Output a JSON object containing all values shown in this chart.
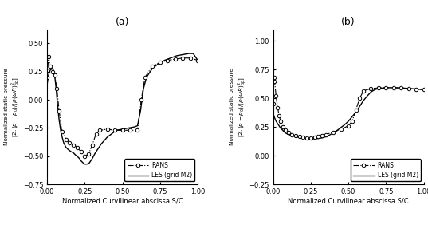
{
  "panel_a_label": "(a)",
  "panel_b_label": "(b)",
  "xlabel": "Normalized Curvilinear abscissa S/C",
  "legend_rans": "RANS",
  "legend_les": "LES (grid M2)",
  "panel_a": {
    "xlim": [
      0.0,
      1.0
    ],
    "ylim": [
      -0.75,
      0.625
    ],
    "yticks": [
      -0.75,
      -0.5,
      -0.25,
      0.0,
      0.25,
      0.5
    ],
    "xticks": [
      0.0,
      0.25,
      0.5,
      0.75,
      1.0
    ],
    "rans_x": [
      0.0,
      0.01,
      0.02,
      0.035,
      0.05,
      0.065,
      0.08,
      0.1,
      0.125,
      0.15,
      0.175,
      0.2,
      0.225,
      0.25,
      0.275,
      0.3,
      0.325,
      0.35,
      0.4,
      0.45,
      0.5,
      0.55,
      0.6,
      0.625,
      0.65,
      0.7,
      0.75,
      0.8,
      0.85,
      0.9,
      0.95,
      1.0
    ],
    "rans_y": [
      0.2,
      0.38,
      0.3,
      0.25,
      0.22,
      0.1,
      -0.1,
      -0.28,
      -0.35,
      -0.38,
      -0.4,
      -0.42,
      -0.46,
      -0.5,
      -0.48,
      -0.4,
      -0.3,
      -0.27,
      -0.26,
      -0.27,
      -0.27,
      -0.27,
      -0.27,
      0.0,
      0.2,
      0.3,
      0.33,
      0.35,
      0.36,
      0.37,
      0.37,
      0.35
    ],
    "les_x": [
      0.0,
      0.005,
      0.01,
      0.02,
      0.03,
      0.04,
      0.05,
      0.06,
      0.07,
      0.08,
      0.09,
      0.1,
      0.11,
      0.125,
      0.14,
      0.16,
      0.175,
      0.19,
      0.2,
      0.215,
      0.225,
      0.24,
      0.25,
      0.265,
      0.28,
      0.3,
      0.32,
      0.34,
      0.36,
      0.38,
      0.4,
      0.43,
      0.46,
      0.5,
      0.54,
      0.58,
      0.6,
      0.62,
      0.64,
      0.66,
      0.7,
      0.74,
      0.78,
      0.82,
      0.86,
      0.9,
      0.94,
      0.97,
      1.0
    ],
    "les_y": [
      0.13,
      0.18,
      0.22,
      0.26,
      0.28,
      0.27,
      0.22,
      0.1,
      -0.05,
      -0.18,
      -0.27,
      -0.33,
      -0.38,
      -0.42,
      -0.44,
      -0.46,
      -0.47,
      -0.49,
      -0.5,
      -0.52,
      -0.54,
      -0.56,
      -0.57,
      -0.57,
      -0.56,
      -0.52,
      -0.47,
      -0.43,
      -0.39,
      -0.36,
      -0.33,
      -0.3,
      -0.27,
      -0.26,
      -0.25,
      -0.24,
      -0.23,
      -0.1,
      0.1,
      0.2,
      0.28,
      0.32,
      0.35,
      0.37,
      0.39,
      0.4,
      0.41,
      0.41,
      0.35
    ]
  },
  "panel_b": {
    "xlim": [
      0.0,
      1.0
    ],
    "ylim": [
      -0.25,
      1.1
    ],
    "yticks": [
      -0.25,
      0.0,
      0.25,
      0.5,
      0.75,
      1.0
    ],
    "xticks": [
      0.0,
      0.25,
      0.5,
      0.75,
      1.0
    ],
    "rans_x": [
      0.0,
      0.005,
      0.01,
      0.02,
      0.03,
      0.04,
      0.05,
      0.065,
      0.08,
      0.1,
      0.125,
      0.15,
      0.175,
      0.2,
      0.225,
      0.25,
      0.275,
      0.3,
      0.325,
      0.35,
      0.4,
      0.45,
      0.5,
      0.525,
      0.55,
      0.575,
      0.6,
      0.65,
      0.7,
      0.75,
      0.8,
      0.85,
      0.9,
      0.95,
      1.0
    ],
    "rans_y": [
      0.45,
      0.68,
      0.65,
      0.52,
      0.42,
      0.35,
      0.3,
      0.25,
      0.22,
      0.2,
      0.18,
      0.175,
      0.165,
      0.16,
      0.155,
      0.155,
      0.16,
      0.165,
      0.175,
      0.185,
      0.205,
      0.23,
      0.26,
      0.3,
      0.4,
      0.5,
      0.565,
      0.585,
      0.59,
      0.592,
      0.592,
      0.59,
      0.585,
      0.58,
      0.575
    ],
    "les_x": [
      0.0,
      0.005,
      0.01,
      0.02,
      0.03,
      0.04,
      0.05,
      0.065,
      0.08,
      0.1,
      0.125,
      0.15,
      0.175,
      0.2,
      0.225,
      0.25,
      0.275,
      0.3,
      0.325,
      0.35,
      0.375,
      0.4,
      0.425,
      0.45,
      0.475,
      0.5,
      0.525,
      0.55,
      0.575,
      0.6,
      0.625,
      0.65,
      0.675,
      0.7,
      0.75,
      0.8,
      0.85,
      0.9,
      0.95,
      1.0
    ],
    "les_y": [
      0.3,
      0.35,
      0.33,
      0.3,
      0.28,
      0.26,
      0.24,
      0.22,
      0.2,
      0.185,
      0.175,
      0.165,
      0.16,
      0.155,
      0.15,
      0.148,
      0.148,
      0.15,
      0.155,
      0.165,
      0.18,
      0.2,
      0.22,
      0.245,
      0.27,
      0.3,
      0.34,
      0.38,
      0.43,
      0.48,
      0.52,
      0.555,
      0.575,
      0.585,
      0.592,
      0.592,
      0.59,
      0.585,
      0.58,
      0.575
    ]
  }
}
